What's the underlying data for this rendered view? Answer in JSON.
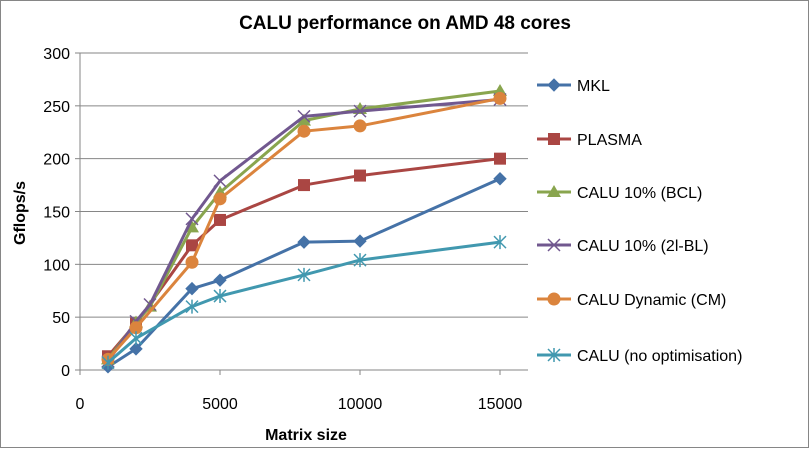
{
  "chart_data": {
    "type": "line",
    "title": "CALU performance on AMD 48 cores",
    "xlabel": "Matrix size",
    "ylabel": "Gflops/s",
    "xlim": [
      0,
      16000
    ],
    "ylim": [
      0,
      300
    ],
    "xticks": [
      0,
      5000,
      10000,
      15000
    ],
    "xtick_labels": [
      "0",
      "5000",
      "10000",
      "15000"
    ],
    "yticks": [
      0,
      50,
      100,
      150,
      200,
      250,
      300
    ],
    "ytick_labels": [
      "0",
      "50",
      "100",
      "150",
      "200",
      "250",
      "300"
    ],
    "grid": "horizontal",
    "legend_position": "right",
    "series": [
      {
        "name": "MKL",
        "color": "#4572A7",
        "marker": "diamond",
        "x": [
          1000,
          2000,
          4000,
          5000,
          8000,
          10000,
          15000
        ],
        "values": [
          3,
          20,
          77,
          85,
          121,
          122,
          181
        ]
      },
      {
        "name": "PLASMA",
        "color": "#AA4643",
        "marker": "square",
        "x": [
          1000,
          2000,
          4000,
          5000,
          8000,
          10000,
          15000
        ],
        "values": [
          13,
          44,
          118,
          142,
          175,
          184,
          200
        ]
      },
      {
        "name": "CALU 10% (BCL)",
        "color": "#89A54E",
        "marker": "triangle",
        "x": [
          1000,
          2000,
          2500,
          4000,
          5000,
          8000,
          10000,
          15000
        ],
        "values": [
          10,
          45,
          60,
          135,
          168,
          236,
          247,
          264
        ]
      },
      {
        "name": "CALU 10% (2l-BL)",
        "color": "#71588F",
        "marker": "x",
        "x": [
          1000,
          2000,
          2500,
          4000,
          5000,
          8000,
          10000,
          15000
        ],
        "values": [
          8,
          46,
          62,
          143,
          179,
          240,
          245,
          256
        ]
      },
      {
        "name": "CALU Dynamic (CM)",
        "color": "#DB843D",
        "marker": "circle",
        "x": [
          1000,
          2000,
          4000,
          5000,
          8000,
          10000,
          15000
        ],
        "values": [
          10,
          40,
          102,
          162,
          226,
          231,
          257
        ]
      },
      {
        "name": "CALU (no optimisation)",
        "color": "#4198AF",
        "marker": "star",
        "x": [
          1000,
          2000,
          4000,
          5000,
          8000,
          10000,
          15000
        ],
        "values": [
          7,
          30,
          60,
          70,
          90,
          104,
          121
        ]
      }
    ]
  },
  "colors": {
    "grid": "#868686",
    "axis": "#868686",
    "background": "#ffffff"
  }
}
